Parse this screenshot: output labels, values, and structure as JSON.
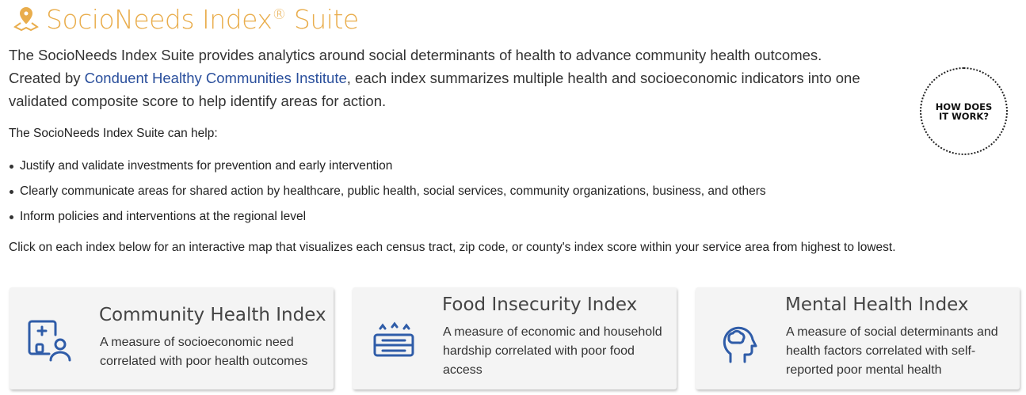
{
  "header": {
    "title": "SocioNeeds Index",
    "registered": "®",
    "title_suffix": "Suite",
    "icon": "map-pin-icon"
  },
  "intro": {
    "line1": "The SocioNeeds Index Suite provides analytics around social determinants of health to advance community health outcomes.",
    "created_by": "Created by",
    "link": "Conduent Healthy Communities Institute",
    "rest": ", each index summarizes multiple health and socioeconomic indicators into one validated composite score to help identify areas for action."
  },
  "help_heading": "The SocioNeeds Index Suite can help:",
  "bullets": [
    "Justify and validate investments for prevention and early intervention",
    "Clearly communicate areas for shared action by healthcare, public health, social services, community organizations, business, and others",
    "Inform policies and interventions at the regional level"
  ],
  "click_text": "Click on each index below for an interactive map that visualizes each census tract, zip code, or county's index score within your service area from highest to lowest.",
  "how_it_works": {
    "line1": "HOW DOES",
    "line2": "IT WORK?"
  },
  "cards": [
    {
      "title": "Community Health Index",
      "desc": "A measure of socioeconomic need correlated with poor health outcomes",
      "icon": "clinic-person-icon"
    },
    {
      "title": "Food Insecurity Index",
      "desc": "A measure of economic and household hardship correlated with poor food access",
      "icon": "food-tray-icon"
    },
    {
      "title": "Mental Health Index",
      "desc": "A measure of social determinants and health factors correlated with self-reported poor mental health",
      "icon": "head-brain-icon"
    }
  ],
  "colors": {
    "title": "#e9ad4c",
    "link": "#2a4f9c",
    "icon": "#2f5ca8",
    "card_bg": "#f4f4f4"
  }
}
